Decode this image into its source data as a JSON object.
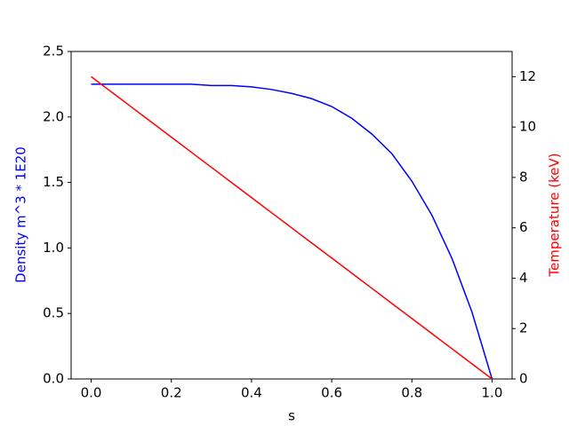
{
  "chart_data": {
    "type": "line",
    "x": [
      0,
      0.05,
      0.1,
      0.15,
      0.2,
      0.25,
      0.3,
      0.35,
      0.4,
      0.45,
      0.5,
      0.55,
      0.6,
      0.65,
      0.7,
      0.75,
      0.8,
      0.85,
      0.9,
      0.95,
      1.0
    ],
    "series": [
      {
        "name": "Density",
        "color": "#0000ff",
        "values": [
          2.25,
          2.25,
          2.25,
          2.25,
          2.25,
          2.25,
          2.24,
          2.24,
          2.23,
          2.21,
          2.18,
          2.14,
          2.08,
          1.99,
          1.87,
          1.72,
          1.51,
          1.25,
          0.92,
          0.51,
          0
        ]
      },
      {
        "name": "Temperature",
        "color": "#ff0000",
        "axis": "y2",
        "values": [
          12,
          11.4,
          10.8,
          10.2,
          9.6,
          9,
          8.4,
          7.8,
          7.2,
          6.6,
          6,
          5.4,
          4.8,
          4.2,
          3.6,
          3,
          2.4,
          1.8,
          1.2,
          0.6,
          0
        ]
      }
    ],
    "xlabel": "s",
    "ylabel": "Density m^3 * 1E20",
    "y2label": "Temperature (keV)",
    "ylabel_color": "#0000ff",
    "y2label_color": "#ff0000",
    "xlim": [
      -0.05,
      1.05
    ],
    "ylim": [
      0,
      2.5
    ],
    "y2lim": [
      0,
      13
    ],
    "xticks": [
      {
        "value": 0,
        "label": "0.0"
      },
      {
        "value": 0.2,
        "label": "0.2"
      },
      {
        "value": 0.4,
        "label": "0.4"
      },
      {
        "value": 0.6,
        "label": "0.6"
      },
      {
        "value": 0.8,
        "label": "0.8"
      },
      {
        "value": 1.0,
        "label": "1.0"
      }
    ],
    "yticks": [
      {
        "value": 0,
        "label": "0.0"
      },
      {
        "value": 0.5,
        "label": "0.5"
      },
      {
        "value": 1.0,
        "label": "1.0"
      },
      {
        "value": 1.5,
        "label": "1.5"
      },
      {
        "value": 2.0,
        "label": "2.0"
      },
      {
        "value": 2.5,
        "label": "2.5"
      }
    ],
    "y2ticks": [
      0,
      2,
      4,
      6,
      8,
      10,
      12
    ]
  }
}
